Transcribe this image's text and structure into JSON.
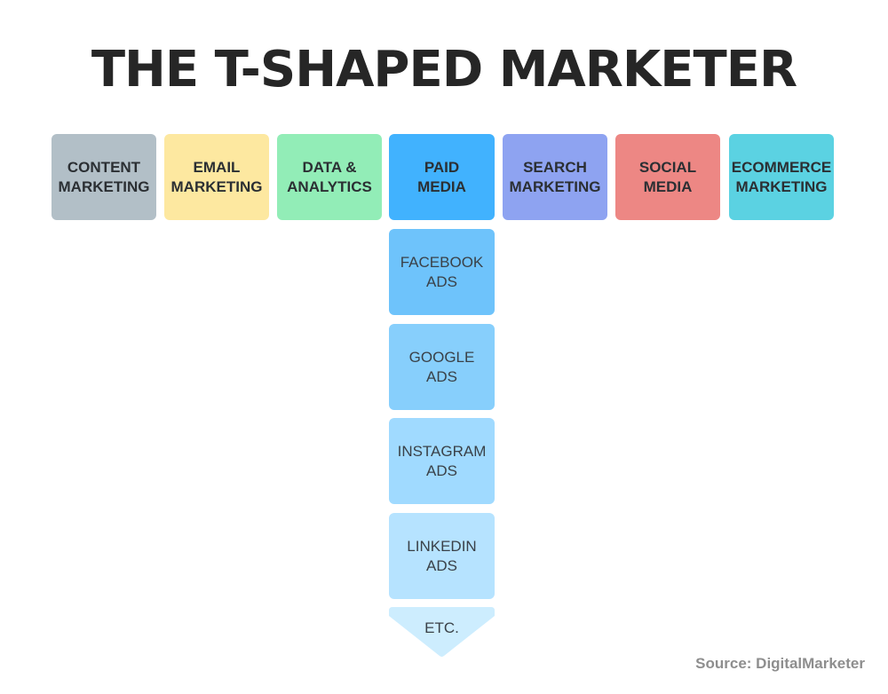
{
  "title": "THE T-SHAPED MARKETER",
  "top_row": [
    {
      "line1": "CONTENT",
      "line2": "MARKETING",
      "color": "#b2bfc7"
    },
    {
      "line1": "EMAIL",
      "line2": "MARKETING",
      "color": "#fde8a0"
    },
    {
      "line1": "DATA &",
      "line2": "ANALYTICS",
      "color": "#92edb7"
    },
    {
      "line1": "PAID",
      "line2": "MEDIA",
      "color": "#41b2fe"
    },
    {
      "line1": "SEARCH",
      "line2": "MARKETING",
      "color": "#8ea3f1"
    },
    {
      "line1": "SOCIAL",
      "line2": "MEDIA",
      "color": "#ed8784"
    },
    {
      "line1": "ECOMMERCE",
      "line2": "MARKETING",
      "color": "#5bd2e2"
    }
  ],
  "stem": [
    {
      "line1": "FACEBOOK",
      "line2": "ADS",
      "color": "#6ec3fb"
    },
    {
      "line1": "GOOGLE",
      "line2": "ADS",
      "color": "#87cffc"
    },
    {
      "line1": "INSTAGRAM",
      "line2": "ADS",
      "color": "#a0daff"
    },
    {
      "line1": "LINKEDIN",
      "line2": "ADS",
      "color": "#b6e3ff"
    }
  ],
  "etc": {
    "label": "ETC.",
    "color": "#cdedfe"
  },
  "source": "Source: DigitalMarketer"
}
